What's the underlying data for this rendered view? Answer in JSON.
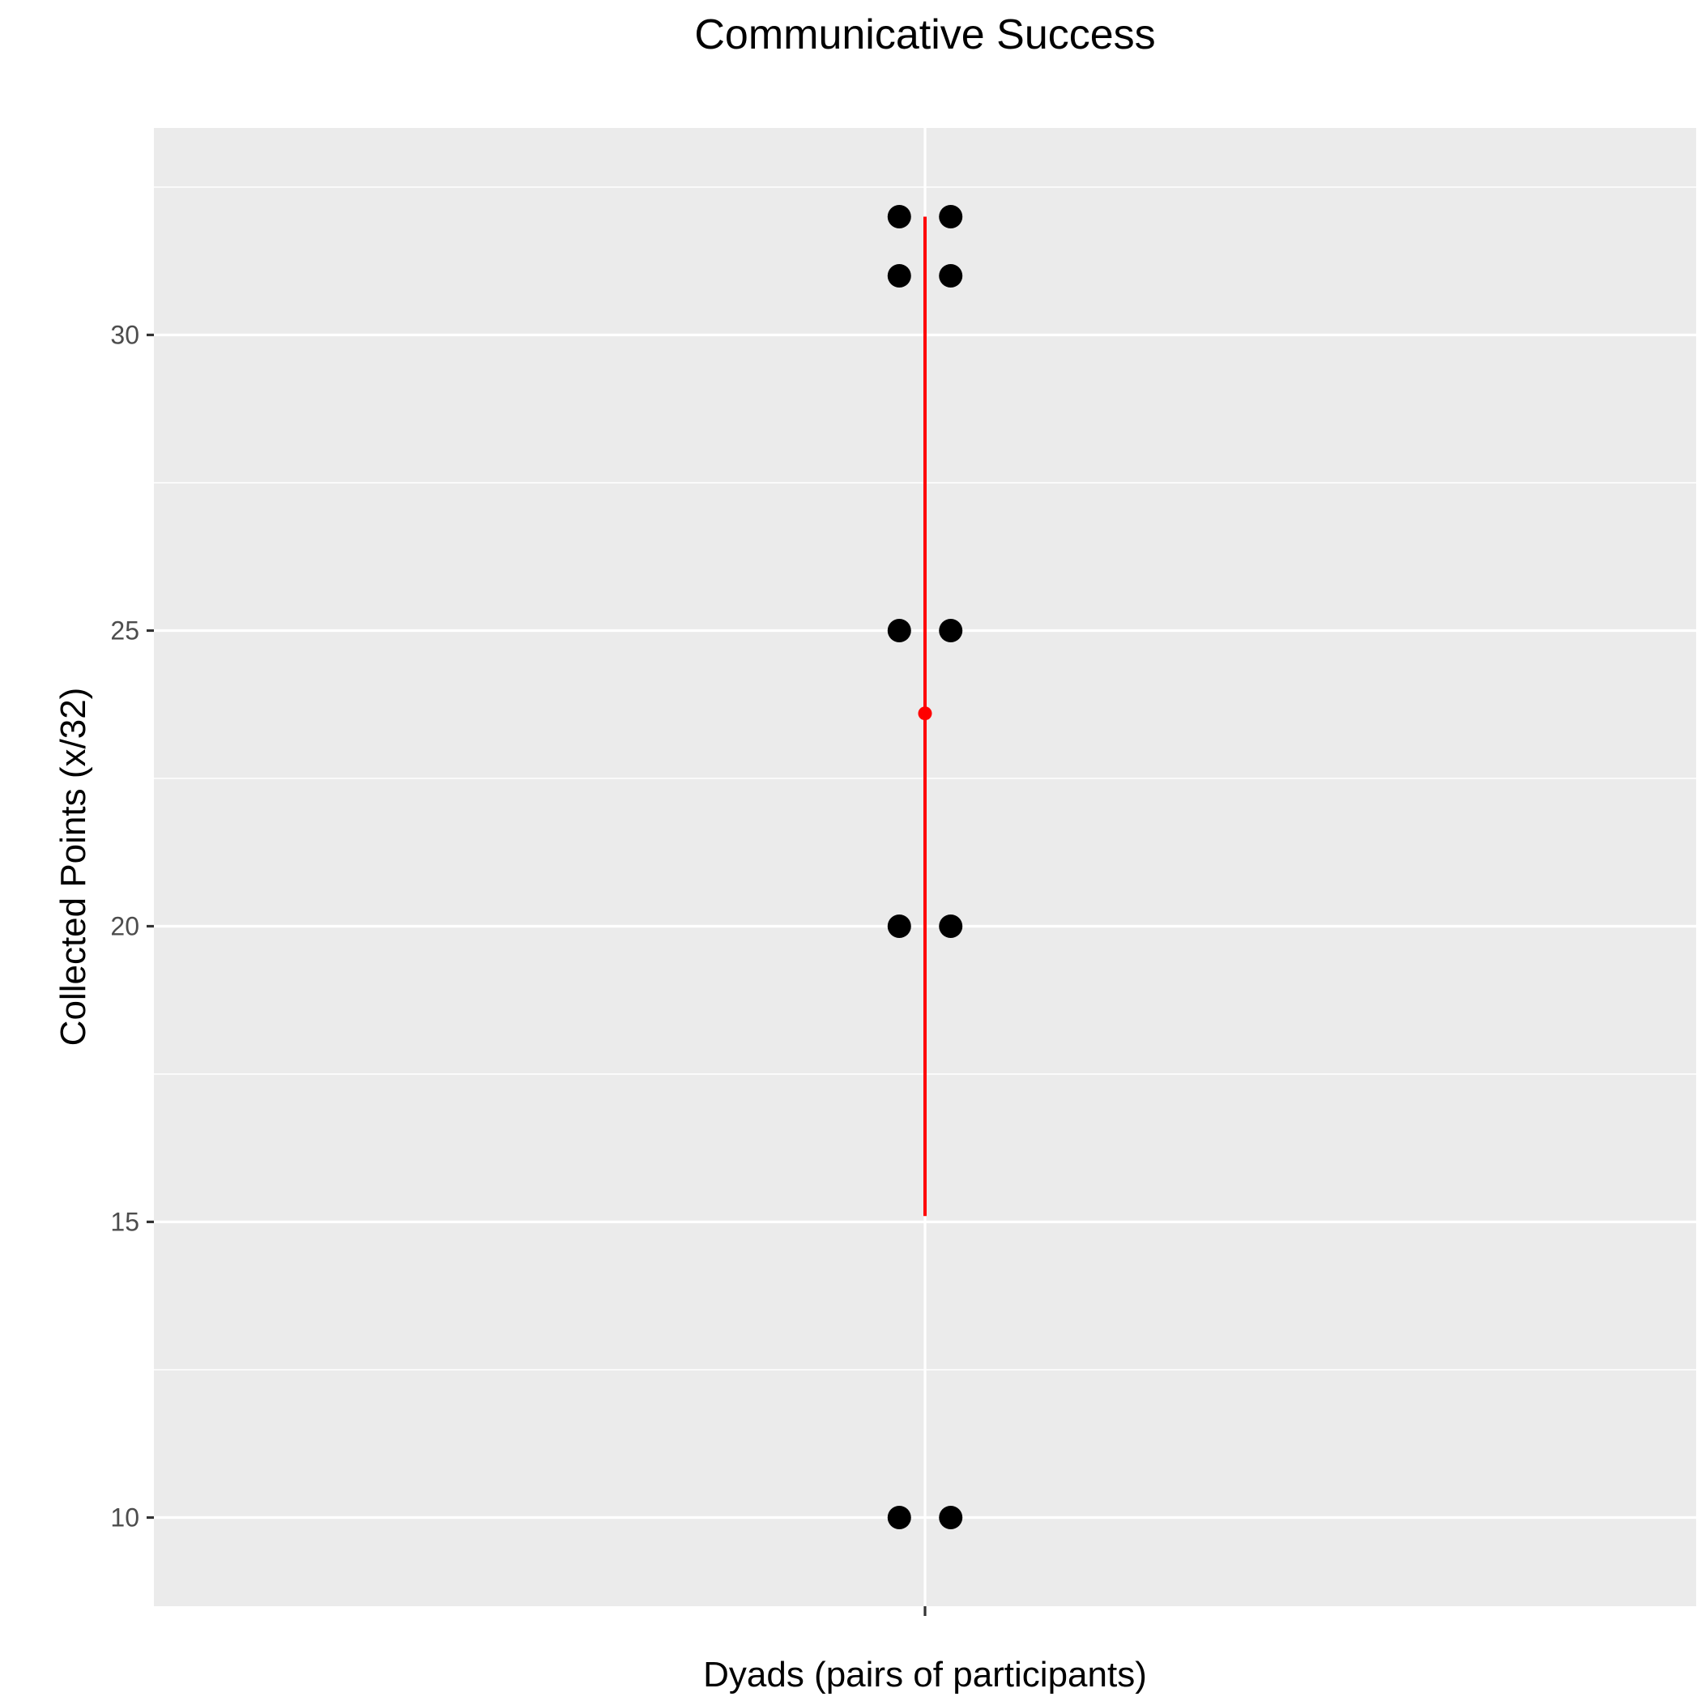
{
  "chart_data": {
    "type": "scatter",
    "title": "Communicative Success",
    "xlabel": "Dyads (pairs of participants)",
    "ylabel": "Collected Points (x/32)",
    "ylim": [
      8.5,
      33.5
    ],
    "yticks": [
      10,
      15,
      20,
      25,
      30
    ],
    "x_tick_labels": [
      ""
    ],
    "grid": true,
    "background": "#EBEBEB",
    "point_color": "#000000",
    "summary_color": "#FF0000",
    "points": [
      {
        "x": -0.02,
        "y": 32
      },
      {
        "x": 0.02,
        "y": 32
      },
      {
        "x": -0.02,
        "y": 31
      },
      {
        "x": 0.02,
        "y": 31
      },
      {
        "x": -0.02,
        "y": 25
      },
      {
        "x": 0.02,
        "y": 25
      },
      {
        "x": -0.02,
        "y": 20
      },
      {
        "x": 0.02,
        "y": 20
      },
      {
        "x": -0.02,
        "y": 10
      },
      {
        "x": 0.02,
        "y": 10
      }
    ],
    "summary": {
      "mean": 23.6,
      "low": 15.1,
      "high": 32
    }
  }
}
